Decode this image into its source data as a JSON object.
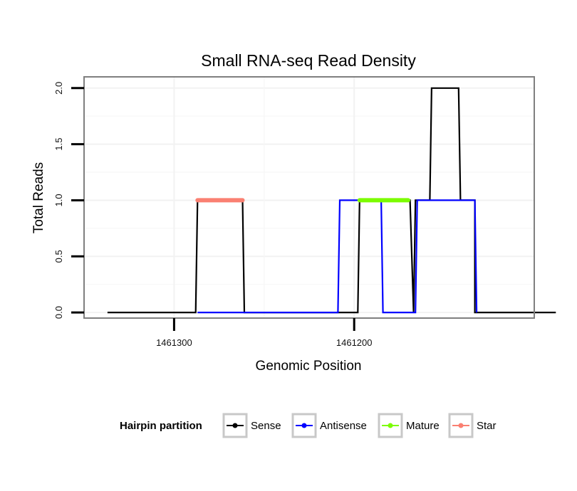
{
  "chart_data": {
    "type": "line",
    "title": "Small RNA-seq Read Density",
    "xlabel": "Genomic Position",
    "ylabel": "Total Reads",
    "xlim": [
      1461350,
      1461100
    ],
    "ylim": [
      -0.05,
      2.1
    ],
    "x_ticks": [
      1461300,
      1461200
    ],
    "x_tick_labels": [
      "1461300",
      "1461200"
    ],
    "y_ticks": [
      0,
      0.5,
      1,
      1.5,
      2
    ],
    "y_tick_labels": [
      "0.0",
      "0.5",
      "1.0",
      "1.5",
      "2.0"
    ],
    "grid": true,
    "legend": {
      "title": "Hairpin partition",
      "position": "bottom",
      "entries": [
        {
          "name": "Sense",
          "color": "#000000"
        },
        {
          "name": "Antisense",
          "color": "#0000ff"
        },
        {
          "name": "Mature",
          "color": "#7cfc00"
        },
        {
          "name": "Star",
          "color": "#fa8072"
        }
      ]
    },
    "series": [
      {
        "name": "Sense",
        "color": "#000000",
        "width": 2.2,
        "x": [
          1461337,
          1461288,
          1461287,
          1461262,
          1461261,
          1461198,
          1461197,
          1461170,
          1461169,
          1461167,
          1461166,
          1461164,
          1461163,
          1461158,
          1461157,
          1461142,
          1461141,
          1461134,
          1461133,
          1461133,
          1461132,
          1461088
        ],
        "y": [
          0,
          0,
          1,
          1,
          0,
          0,
          1,
          1,
          1,
          0,
          1,
          1,
          1,
          1,
          2,
          2,
          1,
          1,
          1,
          0,
          0,
          0
        ]
      },
      {
        "name": "Antisense",
        "color": "#0000ff",
        "width": 2.2,
        "x": [
          1461287,
          1461260,
          1461209,
          1461208,
          1461185,
          1461184,
          1461174,
          1461173,
          1461166,
          1461165,
          1461133,
          1461132
        ],
        "y": [
          0,
          0,
          0,
          1,
          1,
          0,
          0,
          0,
          0,
          1,
          1,
          0
        ]
      },
      {
        "name": "Mature",
        "color": "#7cfc00",
        "width": 6,
        "x": [
          1461197,
          1461170
        ],
        "y": [
          1,
          1
        ]
      },
      {
        "name": "Star",
        "color": "#fa8072",
        "width": 6,
        "x": [
          1461287,
          1461262
        ],
        "y": [
          1,
          1
        ]
      }
    ]
  }
}
